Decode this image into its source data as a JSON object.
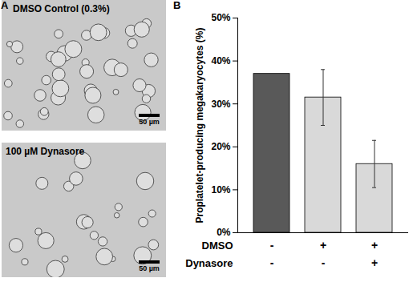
{
  "panels": [
    {
      "label": "A",
      "images": [
        {
          "caption": "DMSO Control (0.3%)",
          "scale_bar": "50 µm"
        },
        {
          "caption": "100 µM Dynasore",
          "scale_bar": "50 µm"
        }
      ]
    },
    {
      "label": "B"
    }
  ],
  "chart_data": {
    "type": "bar",
    "y_label": "Proplatelet-producing megakaryocytes (%)",
    "categories": [
      null,
      null,
      null
    ],
    "values": [
      37,
      31.5,
      16
    ],
    "errors": [
      null,
      6.5,
      5.5
    ],
    "colors": [
      "#595959",
      "#d9d9d9",
      "#d9d9d9"
    ],
    "ylim": [
      0,
      50
    ],
    "yticks": [
      {
        "value": 0,
        "label": "0%"
      },
      {
        "value": 10,
        "label": "10%"
      },
      {
        "value": 20,
        "label": "20%"
      },
      {
        "value": 30,
        "label": "30%"
      },
      {
        "value": 40,
        "label": "40%"
      },
      {
        "value": 50,
        "label": "50%"
      }
    ],
    "grid": false,
    "tick_labels": "y",
    "treatments": [
      {
        "name": "DMSO",
        "marks": [
          "-",
          "+",
          "+"
        ]
      },
      {
        "name": "Dynasore",
        "marks": [
          "-",
          "-",
          "+"
        ]
      }
    ]
  }
}
